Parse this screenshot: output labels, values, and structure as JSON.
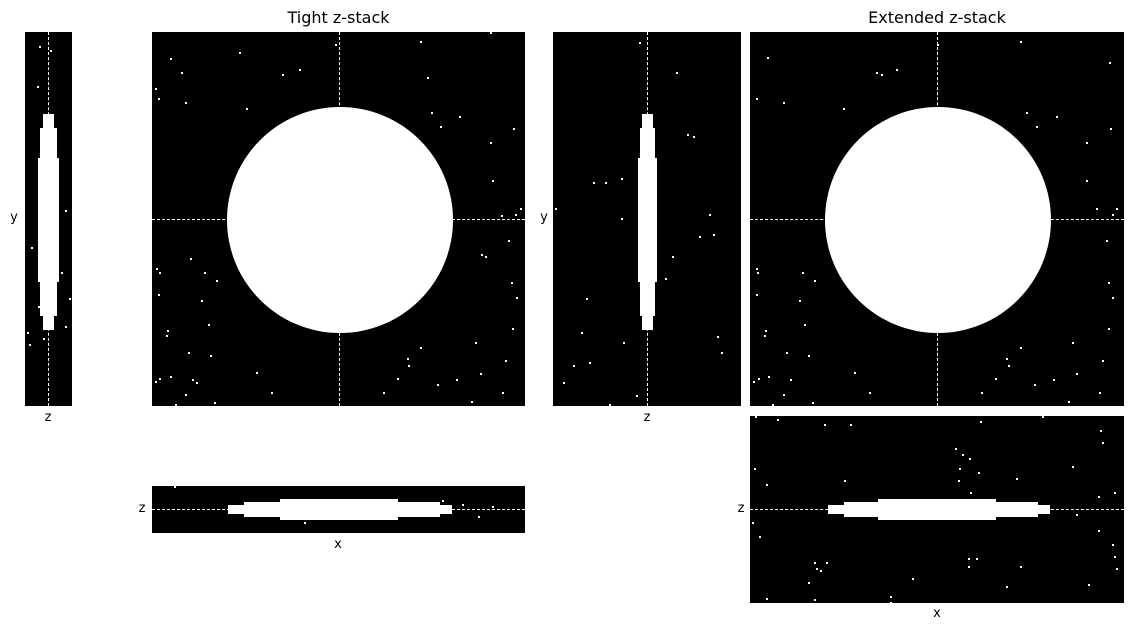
{
  "titles": {
    "tight": "Tight z-stack",
    "extended": "Extended z-stack"
  },
  "axis_labels": {
    "y": "y",
    "z": "z",
    "x": "x"
  },
  "colors": {
    "background": "#000000",
    "object": "#ffffff",
    "crosshair": "#ffffff"
  }
}
